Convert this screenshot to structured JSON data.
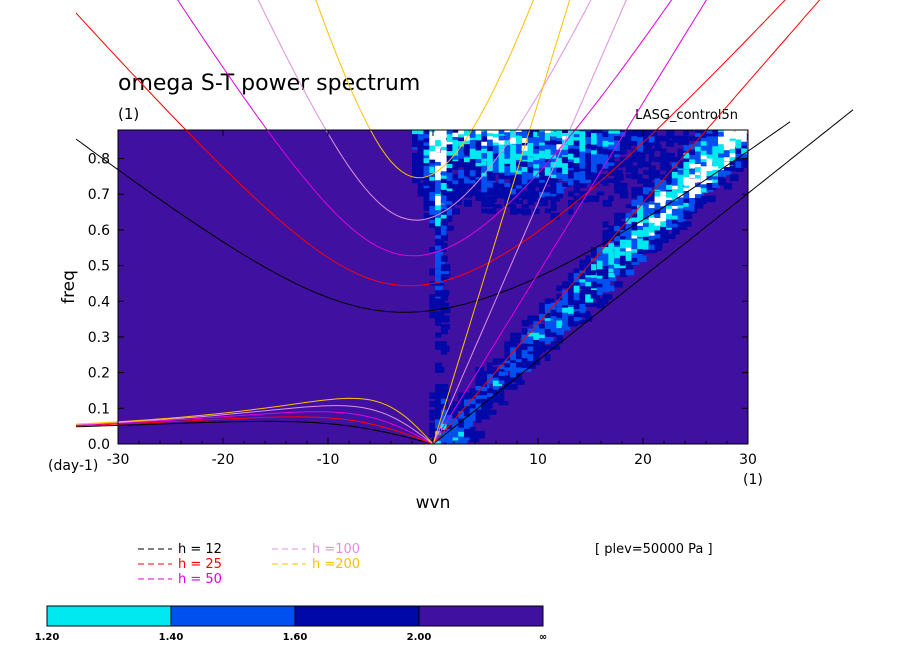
{
  "title": "omega S-T power spectrum",
  "title_unit": "(1)",
  "model": "LASG_control5n",
  "plev": "[ plev=50000 Pa ]",
  "x_unit": "(1)",
  "y_unit": "(day-1)",
  "chart_data": {
    "type": "heatmap",
    "xlabel": "wvn",
    "ylabel": "freq",
    "xlim": [
      -30,
      30
    ],
    "ylim": [
      0,
      0.88
    ],
    "xticks": [
      "-30",
      "-20",
      "-10",
      "0",
      "10",
      "20",
      "30"
    ],
    "yticks": [
      "0.0",
      "0.1",
      "0.2",
      "0.3",
      "0.4",
      "0.5",
      "0.6",
      "0.7",
      "0.8"
    ],
    "dispersion_curves": [
      {
        "label": "h = 12",
        "h": 12,
        "color": "#000000"
      },
      {
        "label": "h = 25",
        "h": 25,
        "color": "#ff0000"
      },
      {
        "label": "h = 50",
        "h": 50,
        "color": "#e000e0"
      },
      {
        "label": "h =100",
        "h": 100,
        "color": "#e090e0"
      },
      {
        "label": "h =200",
        "h": 200,
        "color": "#ffc000"
      }
    ],
    "colorbar": {
      "labels": [
        "1.20",
        "1.40",
        "1.60",
        "2.00",
        "∞"
      ],
      "colors": [
        "#00e8f0",
        "#0050f0",
        "#0008a8",
        "#4010a0"
      ],
      "background_color": "#4010a0",
      "peak_color": "#ffffff"
    }
  }
}
